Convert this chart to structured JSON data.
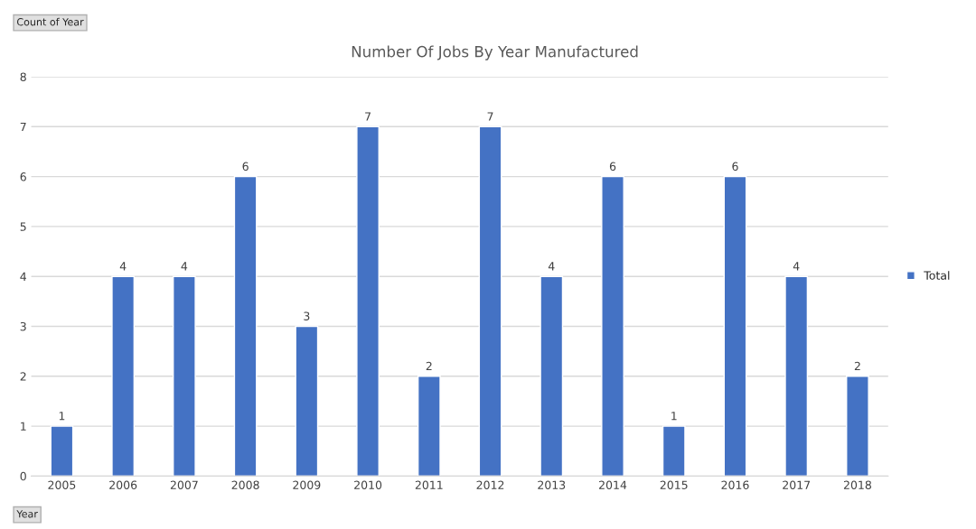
{
  "chart_data": {
    "type": "bar",
    "title": "Number Of Jobs By Year Manufactured",
    "categories": [
      "2005",
      "2006",
      "2007",
      "2008",
      "2009",
      "2010",
      "2011",
      "2012",
      "2013",
      "2014",
      "2015",
      "2016",
      "2017",
      "2018"
    ],
    "series": [
      {
        "name": "Total",
        "color": "#4472c4",
        "values": [
          1,
          4,
          4,
          6,
          3,
          7,
          2,
          7,
          4,
          6,
          1,
          6,
          4,
          2
        ]
      }
    ],
    "ylim": [
      0,
      8
    ],
    "yticks": [
      0,
      1,
      2,
      3,
      4,
      5,
      6,
      7,
      8
    ],
    "grid": "y",
    "legend": "right",
    "data_labels": true,
    "annotations": [
      "Count of Year",
      "Year"
    ]
  }
}
